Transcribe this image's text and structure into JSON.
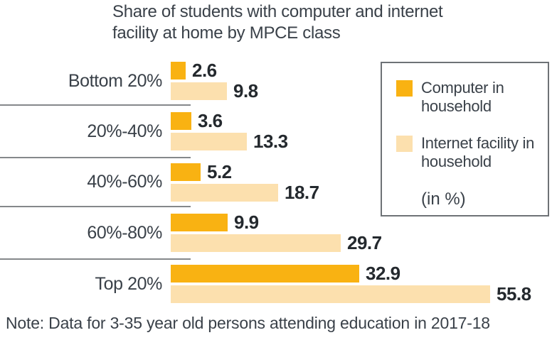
{
  "title": "Share of students with computer and internet\nfacility at home by MPCE class",
  "note": "Note: Data for 3-35 year old persons attending education in 2017-18",
  "legend": {
    "items": [
      {
        "label": "Computer in household",
        "color": "#F9B212"
      },
      {
        "label": "Internet facility in household",
        "color": "#FCE0AE"
      }
    ],
    "unit_label": "(in %)"
  },
  "colors": {
    "computer_bar": "#F9B212",
    "internet_bar": "#FCE0AE",
    "text": "#3A4149",
    "value_text": "#24292E",
    "divider": "#85888B",
    "legend_border": "#6E7276"
  },
  "chart_data": {
    "type": "bar",
    "orientation": "horizontal",
    "title": "Share of students with computer and internet facility at home by MPCE class",
    "categories": [
      "Bottom 20%",
      "20%-40%",
      "40%-60%",
      "60%-80%",
      "Top 20%"
    ],
    "series": [
      {
        "key": "computer",
        "name": "Computer in household",
        "color": "#F9B212",
        "values": [
          2.6,
          3.6,
          5.2,
          9.9,
          32.9
        ]
      },
      {
        "key": "internet",
        "name": "Internet facility in household",
        "color": "#FCE0AE",
        "values": [
          9.8,
          13.3,
          18.7,
          29.7,
          55.8
        ]
      }
    ],
    "unit": "%",
    "xlabel": "",
    "ylabel": "",
    "xlim": [
      0,
      60
    ],
    "grid": false,
    "legend_position": "upper right",
    "value_labels": true
  }
}
